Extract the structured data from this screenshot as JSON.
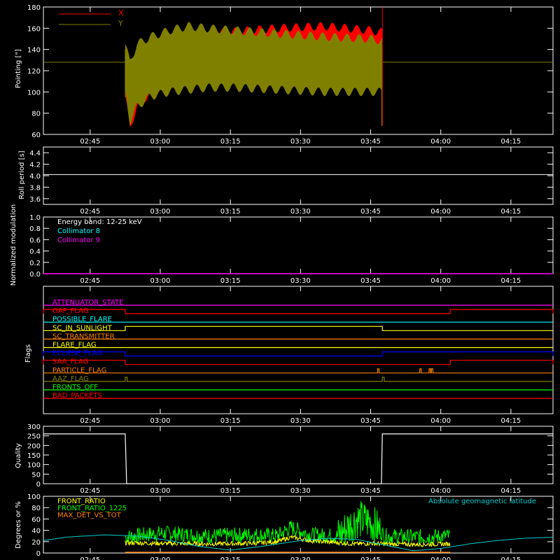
{
  "time_axis": {
    "ticks": [
      "02:45",
      "03:00",
      "03:15",
      "03:30",
      "03:45",
      "04:00",
      "04:15"
    ],
    "tick_minutes": [
      165,
      180,
      195,
      210,
      225,
      240,
      255
    ],
    "range_minutes": [
      155,
      264
    ],
    "gap_minutes": [
      172.5,
      227.5
    ]
  },
  "colors": {
    "background": "#000000",
    "axes": "#ffffff",
    "x_series": "#ff0000",
    "y_series": "#808000",
    "collimator_8": "#00ffff",
    "collimator_9": "#ff00ff",
    "front_ratio": "#ffff00",
    "front_ratio_1225": "#00ff00",
    "max_det_vs_tot": "#ff8000",
    "geomag": "#00cccc"
  },
  "chart_data": [
    {
      "type": "area",
      "ylabel": "Pointing [\"]",
      "ylim": [
        60,
        180
      ],
      "yticks": [
        60,
        80,
        100,
        120,
        140,
        160,
        180
      ],
      "legend": [
        "X",
        "Y"
      ],
      "baseline": 128,
      "series": [
        {
          "name": "X",
          "color": "#ff0000",
          "envelope": {
            "x_minutes": [
              172.5,
              173.5,
              175,
              178,
              182,
              186,
              190,
              196,
              205,
              215,
              225,
              227.5
            ],
            "upper": [
              140,
              120,
              138,
              146,
              150,
              153,
              155,
              157,
              160,
              162,
              158,
              156
            ],
            "lower": [
              95,
              66,
              86,
              100,
              108,
              114,
              118,
              120,
              122,
              124,
              123,
              122
            ]
          }
        },
        {
          "name": "Y",
          "color": "#808000",
          "envelope": {
            "x_minutes": [
              172.5,
              173.5,
              175,
              178,
              182,
              186,
              190,
              196,
              205,
              215,
              225,
              227.5
            ],
            "upper": [
              145,
              128,
              145,
              152,
              158,
              162,
              160,
              158,
              155,
              152,
              150,
              148
            ],
            "lower": [
              100,
              72,
              86,
              96,
              100,
              102,
              104,
              104,
              102,
              100,
              100,
              100
            ]
          }
        }
      ]
    },
    {
      "type": "line",
      "ylabel": "Roll period [s]",
      "ylim": [
        3.5,
        4.5
      ],
      "yticks": [
        "3.6",
        "3.8",
        "4.0",
        "4.2",
        "4.4"
      ],
      "ytick_values": [
        3.6,
        3.8,
        4.0,
        4.2,
        4.4
      ],
      "series": [
        {
          "values": [
            4.02,
            4.02
          ]
        }
      ]
    },
    {
      "type": "line",
      "ylabel": "Normalized modulation",
      "ylim": [
        0,
        1
      ],
      "yticks": [
        "0.0",
        "0.2",
        "0.4",
        "0.6",
        "0.8",
        "1.0"
      ],
      "ytick_values": [
        0,
        0.2,
        0.4,
        0.6,
        0.8,
        1.0
      ],
      "annotations": [
        "Energy band: 12-25 keV",
        "Collimator 8",
        "Collimator 9"
      ],
      "series": [
        {
          "name": "Collimator 9",
          "values": [
            0.0,
            0.0
          ]
        }
      ]
    },
    {
      "type": "line",
      "ylabel": "Flags",
      "flags": [
        {
          "name": "ATTENUATOR_STATE",
          "color": "#ff00ff",
          "high": []
        },
        {
          "name": "GAP_FLAG",
          "color": "#ff0000",
          "high": [
            [
              155,
              172.5
            ],
            [
              242,
              264
            ]
          ]
        },
        {
          "name": "POSSIBLE_FLARE",
          "color": "#00ffff",
          "high": []
        },
        {
          "name": "SC_IN_SUNLIGHT",
          "color": "#ffff00",
          "high": [
            [
              172.5,
              227.5
            ]
          ]
        },
        {
          "name": "SC_TRANSMITTER",
          "color": "#ff8000",
          "high": []
        },
        {
          "name": "FLARE_FLAG",
          "color": "#ffff00",
          "high": []
        },
        {
          "name": "ECLIPSE_FLAG",
          "color": "#0000ff",
          "high": [
            [
              155,
              172.5
            ],
            [
              227.5,
              264
            ]
          ]
        },
        {
          "name": "SAA_FLAG",
          "color": "#ff0000",
          "high": [
            [
              155,
              172.5
            ],
            [
              242,
              264
            ]
          ]
        },
        {
          "name": "PARTICLE_FLAG",
          "color": "#ff8000",
          "high": [
            [
              226.5,
              226.8
            ],
            [
              235.5,
              235.8
            ],
            [
              237.5,
              237.8
            ],
            [
              238,
              238.3
            ]
          ]
        },
        {
          "name": "AAZ_FLAG",
          "color": "#808000",
          "high": [
            [
              172.5,
              172.9
            ],
            [
              227.5,
              227.9
            ]
          ]
        },
        {
          "name": "FRONTS_OFF",
          "color": "#00ff00",
          "high": []
        },
        {
          "name": "BAD_PACKETS",
          "color": "#ff0000",
          "high": []
        }
      ]
    },
    {
      "type": "line",
      "ylabel": "Quality",
      "ylim": [
        0,
        300
      ],
      "yticks": [
        "0",
        "50",
        "100",
        "150",
        "200",
        "250",
        "300"
      ],
      "ytick_values": [
        0,
        50,
        100,
        150,
        200,
        250,
        300
      ],
      "series": [
        {
          "x_minutes": [
            155,
            172.5,
            172.8,
            227.3,
            227.5,
            264
          ],
          "values": [
            260,
            260,
            0,
            0,
            260,
            260
          ]
        }
      ]
    },
    {
      "type": "line",
      "ylabel": "Degrees or %",
      "ylim": [
        0,
        100
      ],
      "yticks": [
        "0",
        "20",
        "40",
        "60",
        "80",
        "100"
      ],
      "ytick_values": [
        0,
        20,
        40,
        60,
        80,
        100
      ],
      "legend": [
        "FRONT_RATIO",
        "FRONT_RATIO_1225",
        "MAX_DET_VS_TOT"
      ],
      "annotation": "Absolute geomagnetic latitude",
      "series": [
        {
          "name": "FRONT_RATIO",
          "color": "#ffff00",
          "x_minutes": [
            172.5,
            180,
            190,
            200,
            205,
            208,
            212,
            218,
            222,
            225,
            228,
            235,
            242
          ],
          "values": [
            18,
            17,
            16,
            17,
            20,
            28,
            22,
            18,
            16,
            17,
            16,
            15,
            16
          ]
        },
        {
          "name": "FRONT_RATIO_1225",
          "color": "#00ff00",
          "x_minutes": [
            172.5,
            180,
            190,
            200,
            205,
            208,
            212,
            218,
            222,
            225,
            228,
            235,
            242
          ],
          "values": [
            28,
            35,
            30,
            32,
            30,
            45,
            32,
            30,
            60,
            55,
            30,
            28,
            30
          ]
        },
        {
          "name": "MAX_DET_VS_TOT",
          "color": "#ff8000",
          "x_minutes": [
            172.5,
            242
          ],
          "values": [
            0,
            0
          ]
        },
        {
          "name": "Absolute geomagnetic latitude",
          "color": "#00cccc",
          "x_minutes": [
            155,
            160,
            168,
            175,
            182,
            188,
            195,
            202,
            210,
            216,
            222,
            228,
            234,
            240,
            246,
            252,
            258,
            264
          ],
          "values": [
            22,
            28,
            32,
            30,
            22,
            12,
            5,
            12,
            22,
            26,
            24,
            14,
            4,
            8,
            16,
            22,
            26,
            28
          ]
        }
      ]
    }
  ]
}
